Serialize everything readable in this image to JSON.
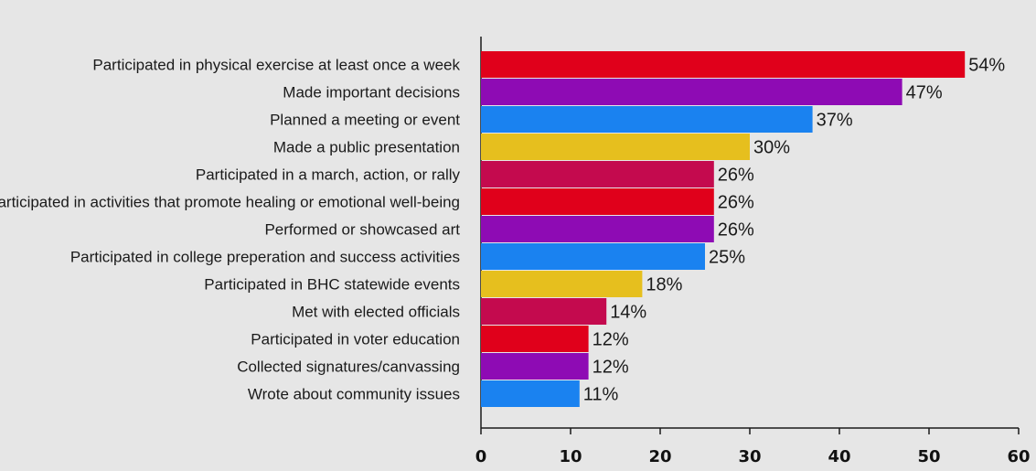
{
  "chart_data": {
    "type": "bar",
    "orientation": "horizontal",
    "categories": [
      "Participated in physical exercise at least once a week",
      "Made important decisions",
      "Planned a meeting or event",
      "Made a public presentation",
      "Participated in a march, action, or rally",
      "Participated in activities that promote healing or emotional well-being",
      "Performed or showcased art",
      "Participated in college preperation and success activities",
      "Participated in BHC statewide events",
      "Met with elected officials",
      "Participated in voter education",
      "Collected signatures/canvassing",
      "Wrote about community issues"
    ],
    "values": [
      54,
      47,
      37,
      30,
      26,
      26,
      26,
      25,
      18,
      14,
      12,
      12,
      11
    ],
    "value_labels": [
      "54%",
      "47%",
      "37%",
      "30%",
      "26%",
      "26%",
      "26%",
      "25%",
      "18%",
      "14%",
      "12%",
      "12%",
      "11%"
    ],
    "bar_colors": [
      "#e0001b",
      "#8e0bb4",
      "#1a82f0",
      "#e6bf1e",
      "#c40a4e",
      "#e0001b",
      "#8e0bb4",
      "#1a82f0",
      "#e6bf1e",
      "#c40a4e",
      "#e0001b",
      "#8e0bb4",
      "#1a82f0"
    ],
    "xlim": [
      0,
      60
    ],
    "xticks": [
      0,
      10,
      20,
      30,
      40,
      50,
      60
    ],
    "grid": false,
    "title": "",
    "xlabel": "",
    "ylabel": ""
  }
}
